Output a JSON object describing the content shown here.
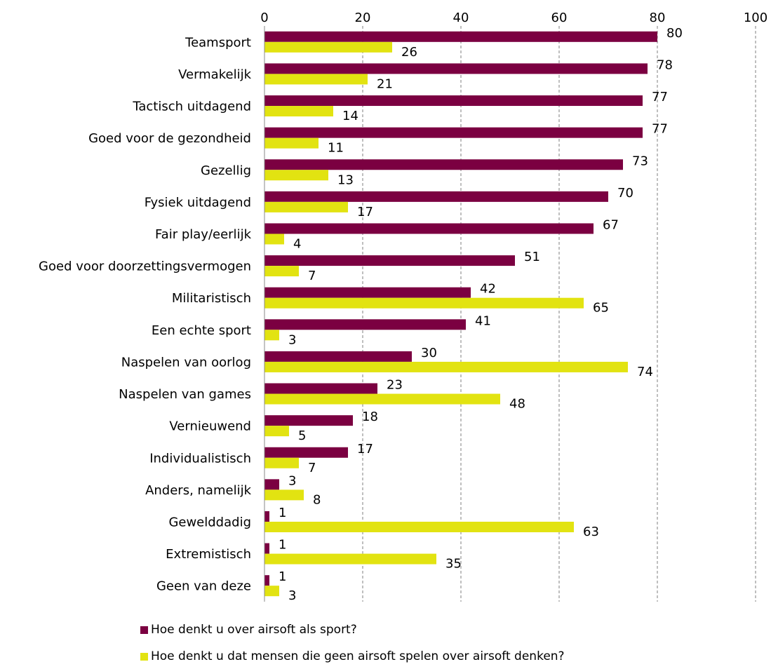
{
  "chart_data": {
    "type": "bar",
    "orientation": "horizontal",
    "categories": [
      "Teamsport",
      "Vermakelijk",
      "Tactisch uitdagend",
      "Goed voor de gezondheid",
      "Gezellig",
      "Fysiek uitdagend",
      "Fair play/eerlijk",
      "Goed voor doorzettingsvermogen",
      "Militaristisch",
      "Een echte sport",
      "Naspelen van oorlog",
      "Naspelen van games",
      "Vernieuwend",
      "Individualistisch",
      "Anders, namelijk",
      "Gewelddadig",
      "Extremistisch",
      "Geen van deze"
    ],
    "series": [
      {
        "name": "Hoe denkt u over airsoft als sport?",
        "color": "#7b0041",
        "values": [
          80,
          78,
          77,
          77,
          73,
          70,
          67,
          51,
          42,
          41,
          30,
          23,
          18,
          17,
          3,
          1,
          1,
          1
        ],
        "labels": [
          "80",
          "78",
          "77",
          "77",
          "73",
          "70",
          "67",
          "51",
          "42",
          "41",
          "30",
          "23",
          "18",
          "17",
          "3",
          "1",
          "1",
          "1"
        ]
      },
      {
        "name": "Hoe denkt u dat mensen die geen airsoft spelen over airsoft denken?",
        "color": "#e2e311",
        "values": [
          26,
          21,
          14,
          11,
          13,
          17,
          4,
          7,
          65,
          3,
          74,
          48,
          5,
          7,
          8,
          63,
          35,
          3
        ],
        "labels": [
          "26",
          "21",
          "14",
          "11",
          "13",
          "17",
          "4",
          "7",
          "65",
          "3",
          "74",
          "48",
          "5",
          "7",
          "8",
          "63",
          "35",
          "3"
        ]
      }
    ],
    "xlim": [
      0,
      100
    ],
    "xticks": [
      "0",
      "20",
      "40",
      "60",
      "80",
      "100"
    ],
    "grid": "vertical dashed",
    "legend_position": "bottom"
  }
}
